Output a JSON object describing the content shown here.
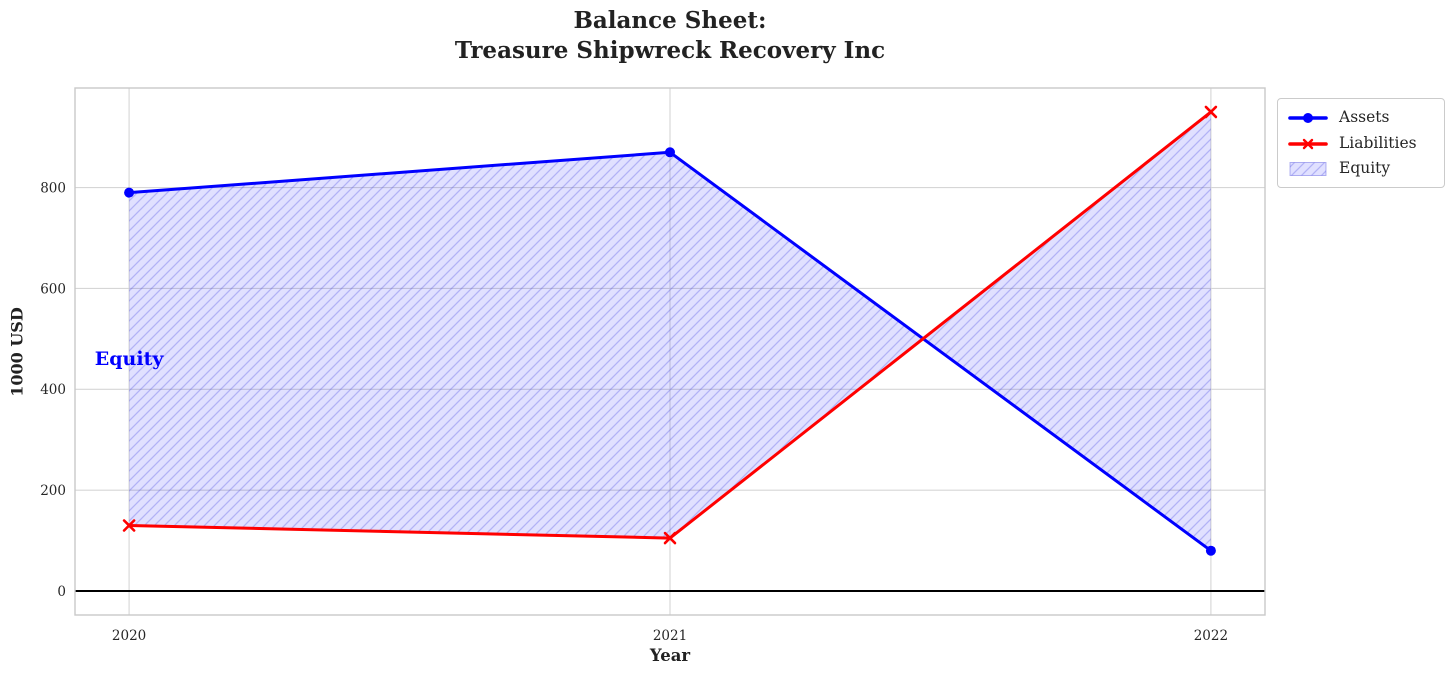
{
  "title": {
    "line1": "Balance Sheet:",
    "line2": "Treasure Shipwreck Recovery Inc"
  },
  "chart_data": {
    "type": "line",
    "x": [
      2020,
      2021,
      2022
    ],
    "series": [
      {
        "name": "Assets",
        "values": [
          790,
          870,
          80
        ],
        "color": "#0000ff",
        "marker": "circle"
      },
      {
        "name": "Liabilities",
        "values": [
          130,
          105,
          950
        ],
        "color": "#ff0000",
        "marker": "x"
      }
    ],
    "fill_between": {
      "name": "Equity",
      "upper": "Assets",
      "lower": "Liabilities",
      "facecolor": "rgba(0,0,255,0.12)",
      "hatch": "/",
      "hatch_color": "rgba(70,70,225,0.30)"
    },
    "xlabel": "Year",
    "ylabel": "1000 USD",
    "xticks": [
      2020,
      2021,
      2022
    ],
    "yticks": [
      0,
      200,
      400,
      600,
      800
    ],
    "xlim": [
      2019.9,
      2022.1
    ],
    "ylim": [
      -47.5,
      997.5
    ],
    "grid": true,
    "grid_color": "#d6d6d6",
    "spine_color": "#c9c9c9",
    "zero_line": {
      "y": 0,
      "color": "#000000"
    },
    "annotation": {
      "text": "Equity",
      "x": 2020,
      "y": 460,
      "color": "#0000ff"
    },
    "legend": {
      "position": "outside-upper-right",
      "entries": [
        "Assets",
        "Liabilities",
        "Equity"
      ]
    },
    "text_color": "#262626",
    "background": "#ffffff"
  }
}
